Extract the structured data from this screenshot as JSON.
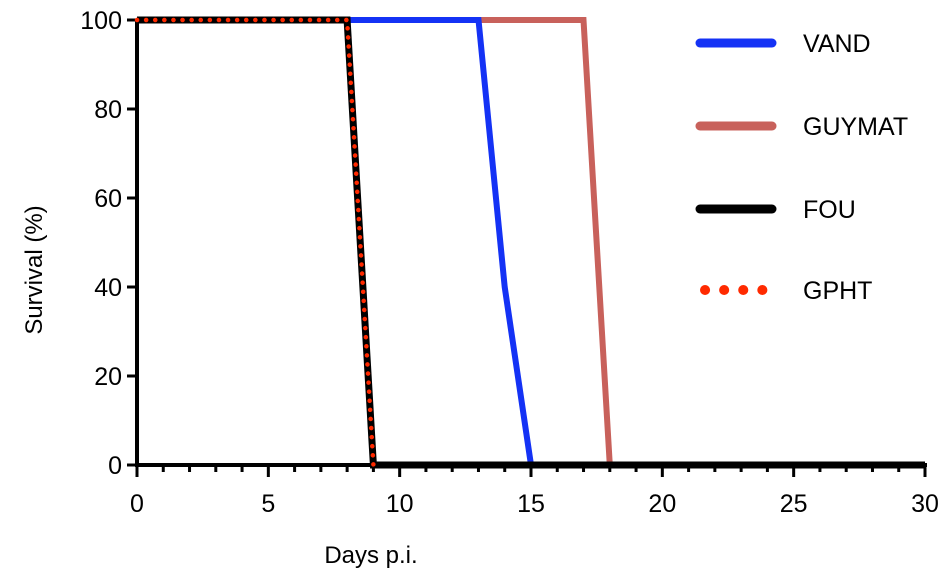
{
  "chart_data": {
    "type": "line",
    "title": "",
    "xlabel": "Days p.i.",
    "ylabel": "Survival (%)",
    "xlim": [
      0,
      30
    ],
    "ylim": [
      0,
      100
    ],
    "x_ticks": [
      0,
      5,
      10,
      15,
      20,
      25,
      30
    ],
    "y_ticks": [
      0,
      20,
      40,
      60,
      80,
      100
    ],
    "grid": false,
    "legend_position": "top-right",
    "series": [
      {
        "name": "VAND",
        "color": "#1432f5",
        "style": "solid",
        "points": [
          [
            0,
            100
          ],
          [
            13,
            100
          ],
          [
            14,
            40
          ],
          [
            15,
            0
          ],
          [
            30,
            0
          ]
        ]
      },
      {
        "name": "GUYMAT",
        "color": "#c8615b",
        "style": "solid",
        "points": [
          [
            0,
            100
          ],
          [
            17,
            100
          ],
          [
            18,
            0
          ],
          [
            30,
            0
          ]
        ]
      },
      {
        "name": "FOU",
        "color": "#000000",
        "style": "solid",
        "points": [
          [
            0,
            100
          ],
          [
            8,
            100
          ],
          [
            9,
            0
          ],
          [
            30,
            0
          ]
        ]
      },
      {
        "name": "GPHT",
        "color": "#ff2a00",
        "style": "dotted",
        "points": [
          [
            0,
            100
          ],
          [
            8,
            100
          ],
          [
            9,
            0
          ]
        ]
      }
    ]
  }
}
